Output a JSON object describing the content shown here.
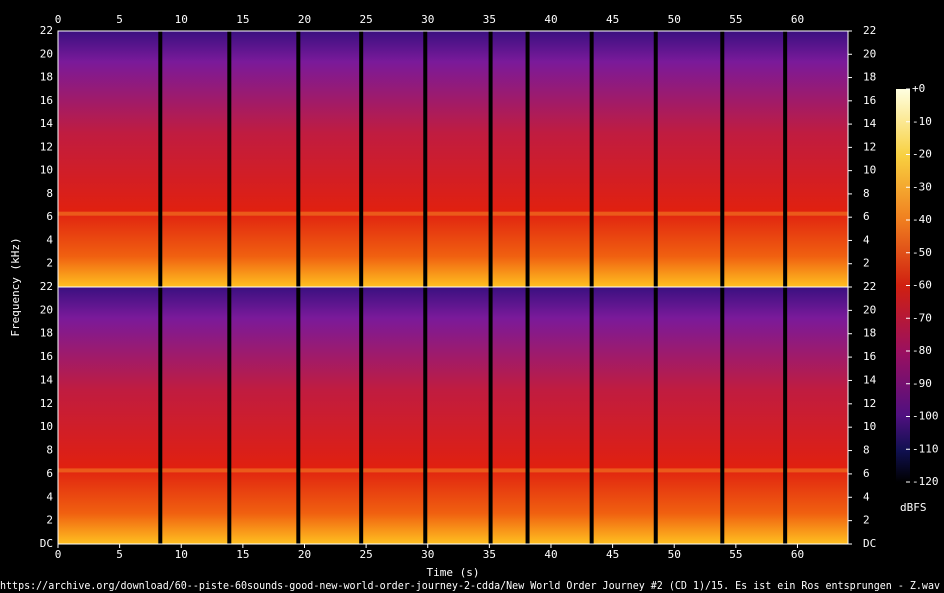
{
  "chart_data": {
    "type": "spectrogram",
    "xlabel": "Time (s)",
    "ylabel": "Frequency (kHz)",
    "caption": "https://archive.org/download/60--piste-60sounds-good-new-world-order-journey-2-cdda/New World Order Journey #2 (CD 1)/15. Es ist ein Ros entsprungen - Z.wav",
    "xlim": [
      0,
      64.1
    ],
    "xticks": [
      0,
      5,
      10,
      15,
      20,
      25,
      30,
      35,
      40,
      45,
      50,
      55,
      60
    ],
    "gaps": [
      8.3,
      13.9,
      19.5,
      24.6,
      29.8,
      35.1,
      38.1,
      43.3,
      48.5,
      53.9,
      59.0
    ],
    "channels": [
      {
        "ylim": [
          0,
          22
        ],
        "yticks": [
          2,
          4,
          6,
          8,
          10,
          12,
          14,
          16,
          18,
          20,
          22
        ]
      },
      {
        "ylim": [
          0,
          22
        ],
        "yticks": [
          {
            "value": 0,
            "label": "DC"
          },
          2,
          4,
          6,
          8,
          10,
          12,
          14,
          16,
          18,
          20,
          22
        ]
      }
    ],
    "colorbar": {
      "label": "dBFS",
      "lim": [
        -120,
        0
      ],
      "ticks": [
        {
          "value": 0,
          "label": "+0"
        },
        -10,
        -20,
        -30,
        -40,
        -50,
        -60,
        -70,
        -80,
        -90,
        -100,
        -110,
        -120
      ]
    }
  }
}
